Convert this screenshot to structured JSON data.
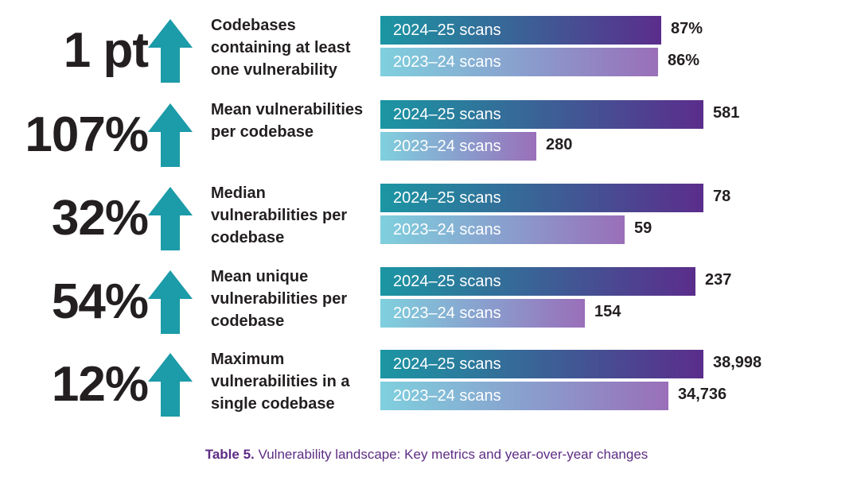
{
  "chart_data": {
    "type": "bar",
    "title": "Vulnerability landscape: Key metrics and year-over-year changes",
    "caption_label": "Table 5.",
    "caption_text": "Vulnerability landscape: Key metrics and year-over-year changes",
    "series_names": [
      "2024–25 scans",
      "2023–24 scans"
    ],
    "colors": {
      "current_start": "#1b96a3",
      "current_end": "#5b2d8c",
      "previous_start": "#7fd0de",
      "previous_end": "#9a6fb9",
      "arrow": "#1c9ba8",
      "caption": "#5d2c84"
    },
    "metrics": [
      {
        "change": "1 pt",
        "label": "Codebases containing at least one vulnerability",
        "current": 87,
        "current_label": "87%",
        "previous": 86,
        "previous_label": "86%",
        "max": 100
      },
      {
        "change": "107%",
        "label": "Mean vulnerabilities per codebase",
        "current": 581,
        "current_label": "581",
        "previous": 280,
        "previous_label": "280",
        "max": 581
      },
      {
        "change": "32%",
        "label": "Median vulnerabilities per codebase",
        "current": 78,
        "current_label": "78",
        "previous": 59,
        "previous_label": "59",
        "max": 78
      },
      {
        "change": "54%",
        "label": "Mean unique vulnerabilities per codebase",
        "current": 237,
        "current_label": "237",
        "previous": 154,
        "previous_label": "154",
        "max": 243
      },
      {
        "change": "12%",
        "label": "Maximum vulnerabilities in a single codebase",
        "current": 38998,
        "current_label": "38,998",
        "previous": 34736,
        "previous_label": "34,736",
        "max": 38998
      }
    ]
  }
}
